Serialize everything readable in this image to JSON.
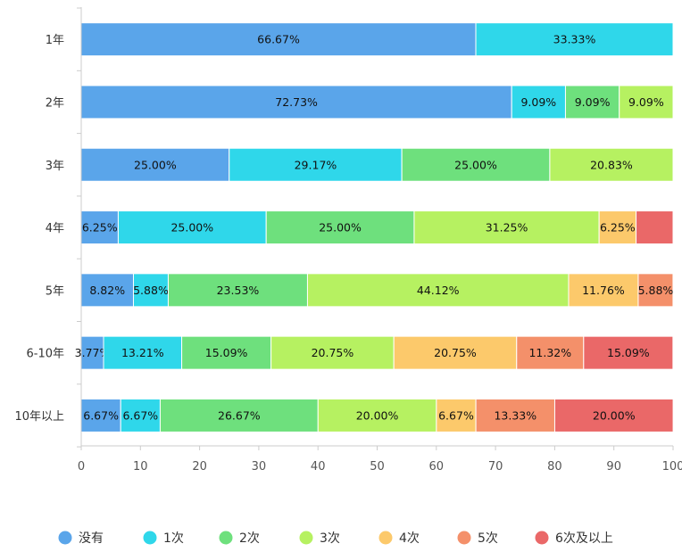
{
  "chart_data": {
    "type": "bar",
    "orientation": "horizontal",
    "stacked": true,
    "categories": [
      "1年",
      "2年",
      "3年",
      "4年",
      "5年",
      "6-10年",
      "10年以上"
    ],
    "series": [
      {
        "name": "没有",
        "color": "#5aa5ea",
        "values": [
          66.67,
          72.73,
          25.0,
          6.25,
          8.82,
          3.77,
          6.67
        ],
        "labels": [
          "66.67%",
          "72.73%",
          "25.00%",
          "6.25%",
          "8.82%",
          "3.77%",
          "6.67%"
        ]
      },
      {
        "name": "1次",
        "color": "#2fd7ea",
        "values": [
          33.33,
          9.09,
          29.17,
          25.0,
          5.88,
          13.21,
          6.67
        ],
        "labels": [
          "33.33%",
          "9.09%",
          "29.17%",
          "25.00%",
          "5.88%",
          "13.21%",
          "6.67%"
        ]
      },
      {
        "name": "2次",
        "color": "#6ee07d",
        "values": [
          0,
          9.09,
          25.0,
          25.0,
          23.53,
          15.09,
          26.67
        ],
        "labels": [
          "",
          "9.09%",
          "25.00%",
          "25.00%",
          "23.53%",
          "15.09%",
          "26.67%"
        ]
      },
      {
        "name": "3次",
        "color": "#b6f161",
        "values": [
          0,
          9.09,
          20.83,
          31.25,
          44.12,
          20.75,
          20.0
        ],
        "labels": [
          "",
          "9.09%",
          "20.83%",
          "31.25%",
          "44.12%",
          "20.75%",
          "20.00%"
        ]
      },
      {
        "name": "4次",
        "color": "#fcc96b",
        "values": [
          0,
          0,
          0,
          6.25,
          11.76,
          20.75,
          6.67
        ],
        "labels": [
          "",
          "",
          "",
          "6.25%",
          "11.76%",
          "20.75%",
          "6.67%"
        ]
      },
      {
        "name": "5次",
        "color": "#f4906a",
        "values": [
          0,
          0,
          0,
          0,
          5.88,
          11.32,
          13.33
        ],
        "labels": [
          "",
          "",
          "",
          "",
          "5.88%",
          "11.32%",
          "13.33%"
        ]
      },
      {
        "name": "6次及以上",
        "color": "#ea6868",
        "values": [
          0,
          0,
          0,
          6.25,
          0,
          15.09,
          20.0
        ],
        "labels": [
          "",
          "",
          "",
          "",
          "",
          "15.09%",
          "20.00%"
        ]
      }
    ],
    "xlim": [
      0,
      100
    ],
    "xticks": [
      "0",
      "10",
      "20",
      "30",
      "40",
      "50",
      "60",
      "70",
      "80",
      "90",
      "100"
    ],
    "legend_position": "bottom",
    "grid": false
  }
}
